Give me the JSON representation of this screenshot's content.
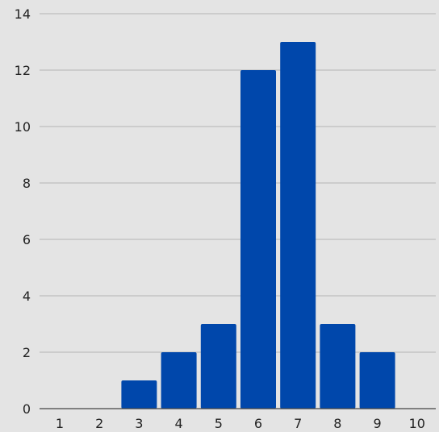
{
  "colors": {
    "background": "#e4e4e4",
    "bar": "#0047ab",
    "grid": "#b4b4b4",
    "text": "#222222"
  },
  "chart_data": {
    "type": "bar",
    "title": "",
    "xlabel": "",
    "ylabel": "",
    "categories": [
      "1",
      "2",
      "3",
      "4",
      "5",
      "6",
      "7",
      "8",
      "9",
      "10"
    ],
    "values": [
      0,
      0,
      1,
      2,
      3,
      12,
      13,
      3,
      2,
      0
    ],
    "ylim": [
      0,
      14
    ],
    "yticks": [
      "0",
      "2",
      "4",
      "6",
      "8",
      "10",
      "12",
      "14"
    ],
    "grid": true,
    "legend": "none"
  }
}
